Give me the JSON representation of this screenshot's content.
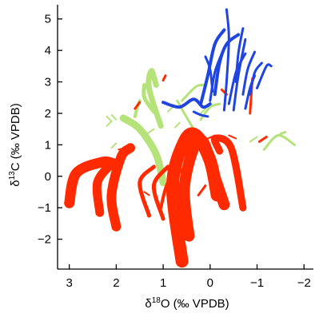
{
  "chart_data": {
    "type": "line",
    "title": "",
    "xlabel": {
      "delta": "δ",
      "sup": "18",
      "rest": "O (‰ VPDB)"
    },
    "ylabel": {
      "delta": "δ",
      "sup": "13",
      "rest": "C (‰ VPDB)"
    },
    "xlim": [
      3.25,
      -2.2
    ],
    "x_reversed": true,
    "ylim": [
      -2.95,
      5.45
    ],
    "xticks": [
      3,
      2,
      1,
      0,
      -1,
      -2
    ],
    "xtick_labels": [
      "3",
      "2",
      "1",
      "0",
      "−1",
      "−2"
    ],
    "yticks": [
      5,
      4,
      3,
      2,
      1,
      0,
      -1,
      -2
    ],
    "ytick_labels": [
      "5",
      "4",
      "3",
      "2",
      "1",
      "0",
      "−1",
      "−2"
    ],
    "grid": false,
    "legend": "none",
    "colors": {
      "red": "#ff2a00",
      "green": "#b5e37a",
      "blue": "#1f44e0"
    },
    "series": [
      {
        "color": "red",
        "width": 16,
        "points": [
          [
            0.6,
            -2.7
          ],
          [
            0.8,
            -0.3
          ],
          [
            0.55,
            1.1
          ],
          [
            0.3,
            1.3
          ],
          [
            0.0,
            0.5
          ],
          [
            -0.15,
            -0.6
          ]
        ]
      },
      {
        "color": "red",
        "width": 14,
        "points": [
          [
            0.45,
            -1.9
          ],
          [
            0.55,
            -0.4
          ],
          [
            0.35,
            0.9
          ],
          [
            0.15,
            1.1
          ],
          [
            -0.05,
            0.2
          ],
          [
            -0.3,
            -0.9
          ]
        ]
      },
      {
        "color": "red",
        "width": 9,
        "points": [
          [
            -0.2,
            0.8
          ],
          [
            -0.1,
            1.2
          ],
          [
            -0.45,
            0.9
          ],
          [
            -0.7,
            -1.0
          ]
        ]
      },
      {
        "color": "red",
        "width": 13,
        "points": [
          [
            3.0,
            -0.85
          ],
          [
            2.85,
            0.1
          ],
          [
            2.3,
            0.45
          ],
          [
            2.05,
            0.4
          ]
        ]
      },
      {
        "color": "red",
        "width": 11,
        "points": [
          [
            2.35,
            -1.15
          ],
          [
            2.4,
            -0.2
          ],
          [
            2.1,
            0.4
          ]
        ]
      },
      {
        "color": "red",
        "width": 12,
        "points": [
          [
            2.0,
            -1.6
          ],
          [
            2.1,
            -0.6
          ],
          [
            1.9,
            0.6
          ],
          [
            1.7,
            0.9
          ]
        ]
      },
      {
        "color": "red",
        "width": 5,
        "points": [
          [
            1.3,
            -1.25
          ],
          [
            1.5,
            -0.2
          ],
          [
            1.2,
            0.3
          ]
        ]
      },
      {
        "color": "red",
        "width": 5,
        "points": [
          [
            1.0,
            -1.35
          ],
          [
            1.2,
            -0.3
          ],
          [
            0.9,
            0.3
          ]
        ]
      },
      {
        "color": "red",
        "width": 4,
        "points": [
          [
            1.05,
            -1.0
          ],
          [
            0.9,
            -0.2
          ],
          [
            0.6,
            0.2
          ]
        ]
      },
      {
        "color": "red",
        "width": 3,
        "points": [
          [
            -1.05,
            1.1
          ],
          [
            -1.2,
            1.25
          ]
        ]
      },
      {
        "color": "red",
        "width": 3,
        "points": [
          [
            -0.25,
            2.75
          ],
          [
            -0.35,
            2.6
          ]
        ]
      },
      {
        "color": "red",
        "width": 3,
        "points": [
          [
            -0.85,
            2.0
          ],
          [
            -0.9,
            3.1
          ]
        ]
      },
      {
        "color": "red",
        "width": 3,
        "points": [
          [
            1.0,
            3.05
          ],
          [
            0.95,
            3.2
          ]
        ]
      },
      {
        "color": "red",
        "width": 3,
        "points": [
          [
            1.6,
            2.15
          ],
          [
            1.5,
            2.35
          ]
        ]
      },
      {
        "color": "red",
        "width": 2,
        "points": [
          [
            1.95,
            0.85
          ],
          [
            1.8,
            0.9
          ]
        ]
      },
      {
        "color": "red",
        "width": 2,
        "points": [
          [
            1.4,
            -0.5
          ],
          [
            1.3,
            -0.6
          ]
        ]
      },
      {
        "color": "red",
        "width": 3,
        "points": [
          [
            0.25,
            -0.6
          ],
          [
            0.1,
            -0.3
          ]
        ]
      },
      {
        "color": "red",
        "width": 2,
        "points": [
          [
            0.05,
            1.2
          ],
          [
            -0.1,
            1.3
          ]
        ]
      },
      {
        "color": "red",
        "width": 2,
        "points": [
          [
            -0.4,
            1.3
          ],
          [
            -0.55,
            1.2
          ]
        ]
      },
      {
        "color": "green",
        "width": 9,
        "points": [
          [
            1.0,
            -0.2
          ],
          [
            1.15,
            0.7
          ],
          [
            1.5,
            1.5
          ],
          [
            1.85,
            1.85
          ]
        ]
      },
      {
        "color": "green",
        "width": 7,
        "points": [
          [
            1.05,
            1.6
          ],
          [
            1.3,
            2.8
          ],
          [
            1.25,
            3.35
          ],
          [
            1.15,
            2.9
          ]
        ]
      },
      {
        "color": "green",
        "width": 5,
        "points": [
          [
            1.2,
            2.05
          ],
          [
            1.4,
            2.5
          ],
          [
            1.4,
            2.9
          ]
        ]
      },
      {
        "color": "green",
        "width": 4,
        "points": [
          [
            1.6,
            1.9
          ],
          [
            1.55,
            2.2
          ],
          [
            1.5,
            2.4
          ]
        ]
      },
      {
        "color": "green",
        "width": 3,
        "points": [
          [
            0.35,
            1.5
          ],
          [
            0.55,
            2.0
          ],
          [
            0.7,
            2.4
          ]
        ]
      },
      {
        "color": "green",
        "width": 3,
        "points": [
          [
            0.6,
            2.4
          ],
          [
            0.3,
            2.85
          ],
          [
            0.1,
            2.9
          ]
        ]
      },
      {
        "color": "green",
        "width": 3,
        "points": [
          [
            0.2,
            1.8
          ],
          [
            0.0,
            2.2
          ],
          [
            -0.2,
            2.3
          ]
        ]
      },
      {
        "color": "green",
        "width": 3,
        "points": [
          [
            -1.15,
            0.85
          ],
          [
            -1.45,
            1.3
          ],
          [
            -1.8,
            1.0
          ]
        ]
      },
      {
        "color": "green",
        "width": 3,
        "points": [
          [
            -1.5,
            1.35
          ],
          [
            -1.6,
            1.4
          ]
        ]
      },
      {
        "color": "green",
        "width": 2,
        "points": [
          [
            -0.85,
            1.1
          ],
          [
            -1.0,
            1.25
          ]
        ]
      },
      {
        "color": "green",
        "width": 2,
        "points": [
          [
            2.2,
            1.6
          ],
          [
            2.1,
            1.75
          ]
        ]
      },
      {
        "color": "green",
        "width": 2,
        "points": [
          [
            2.1,
            0.9
          ],
          [
            2.0,
            1.05
          ]
        ]
      },
      {
        "color": "green",
        "width": 2,
        "points": [
          [
            2.1,
            1.95
          ],
          [
            2.0,
            1.8
          ]
        ]
      },
      {
        "color": "green",
        "width": 2,
        "points": [
          [
            2.1,
            1.75
          ],
          [
            2.2,
            1.9
          ]
        ]
      },
      {
        "color": "green",
        "width": 2,
        "points": [
          [
            1.35,
            1.35
          ],
          [
            1.2,
            1.5
          ]
        ]
      },
      {
        "color": "green",
        "width": 2,
        "points": [
          [
            0.75,
            1.55
          ],
          [
            0.65,
            1.7
          ]
        ]
      },
      {
        "color": "green",
        "width": 2,
        "points": [
          [
            0.2,
            2.0
          ],
          [
            0.1,
            2.15
          ]
        ]
      },
      {
        "color": "green",
        "width": 2,
        "points": [
          [
            0.9,
            2.05
          ],
          [
            0.8,
            2.2
          ]
        ]
      },
      {
        "color": "blue",
        "width": 4,
        "points": [
          [
            0.2,
            2.3
          ],
          [
            0.05,
            3.2
          ],
          [
            -0.1,
            4.2
          ],
          [
            -0.3,
            4.65
          ]
        ]
      },
      {
        "color": "blue",
        "width": 4,
        "points": [
          [
            -0.1,
            2.6
          ],
          [
            -0.2,
            3.6
          ],
          [
            -0.35,
            4.2
          ],
          [
            -0.6,
            4.5
          ]
        ]
      },
      {
        "color": "blue",
        "width": 3,
        "points": [
          [
            -0.3,
            2.1
          ],
          [
            -0.35,
            3.0
          ],
          [
            -0.4,
            4.4
          ],
          [
            -0.35,
            5.3
          ]
        ]
      },
      {
        "color": "blue",
        "width": 3,
        "points": [
          [
            -0.4,
            2.3
          ],
          [
            -0.55,
            3.3
          ],
          [
            -0.75,
            3.9
          ]
        ]
      },
      {
        "color": "blue",
        "width": 3,
        "points": [
          [
            -0.5,
            2.1
          ],
          [
            -0.6,
            3.2
          ],
          [
            -0.75,
            4.35
          ]
        ]
      },
      {
        "color": "blue",
        "width": 3,
        "points": [
          [
            -0.7,
            2.6
          ],
          [
            -0.8,
            3.4
          ],
          [
            -0.95,
            3.95
          ]
        ]
      },
      {
        "color": "blue",
        "width": 3,
        "points": [
          [
            -0.85,
            2.6
          ],
          [
            -0.95,
            3.3
          ],
          [
            -1.1,
            3.6
          ]
        ]
      },
      {
        "color": "blue",
        "width": 3,
        "points": [
          [
            -1.0,
            2.8
          ],
          [
            -1.2,
            3.5
          ],
          [
            -1.3,
            3.5
          ]
        ]
      },
      {
        "color": "blue",
        "width": 3,
        "points": [
          [
            -0.75,
            2.15
          ],
          [
            -0.85,
            2.8
          ],
          [
            -0.95,
            3.2
          ]
        ]
      },
      {
        "color": "blue",
        "width": 3,
        "points": [
          [
            0.0,
            2.4
          ],
          [
            -0.1,
            3.3
          ],
          [
            -0.25,
            3.9
          ]
        ]
      },
      {
        "color": "blue",
        "width": 3,
        "points": [
          [
            -0.55,
            3.0
          ],
          [
            -0.6,
            3.9
          ],
          [
            -0.7,
            4.7
          ]
        ]
      },
      {
        "color": "blue",
        "width": 4,
        "points": [
          [
            1.0,
            2.35
          ],
          [
            0.65,
            2.2
          ],
          [
            0.35,
            2.45
          ],
          [
            0.15,
            2.2
          ],
          [
            0.0,
            2.3
          ]
        ]
      },
      {
        "color": "blue",
        "width": 3,
        "points": [
          [
            0.35,
            2.05
          ],
          [
            0.2,
            1.95
          ],
          [
            0.05,
            1.9
          ]
        ]
      },
      {
        "color": "blue",
        "width": 3,
        "points": [
          [
            -0.05,
            2.7
          ],
          [
            0.0,
            3.4
          ],
          [
            0.1,
            3.8
          ]
        ]
      }
    ]
  }
}
